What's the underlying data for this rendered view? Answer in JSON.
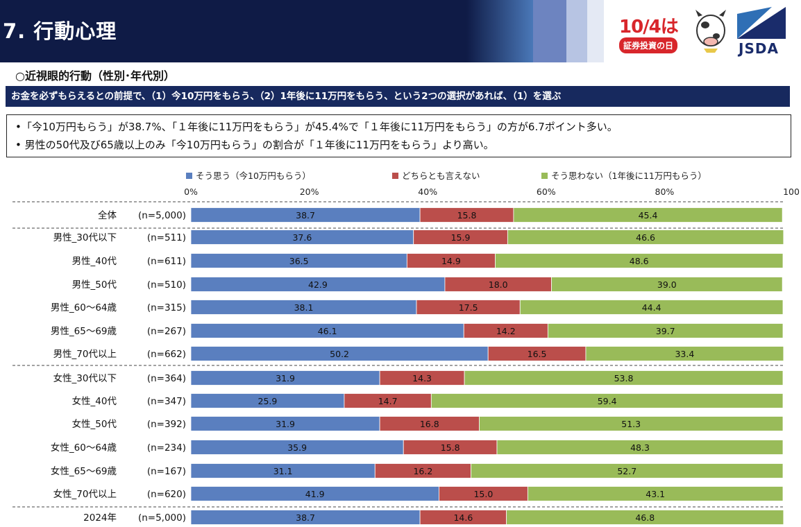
{
  "header": {
    "title": "7. 行動心理"
  },
  "logo": {
    "campaign_date": "10/4は",
    "campaign_sub": "証券投資の日",
    "org": "JSDA"
  },
  "section_title": "○近視眼的行動（性別･年代別）",
  "question": "お金を必ずもらえるとの前提で、（1）今10万円をもらう、（2）1年後に11万円をもらう、という2つの選択があれば、（1）を選ぶ",
  "summary": [
    "•「今10万円もらう」が38.7%、「１年後に11万円をもらう」が45.4%で「１年後に11万円をもらう」の方が6.7ポイント多い。",
    "• 男性の50代及び65歳以上のみ「今10万円もらう」の割合が「１年後に11万円をもらう」より高い。"
  ],
  "colors": {
    "header_bg": "#0f1b46",
    "question_bg": "#17295e",
    "blue": "#5a7fbf",
    "red": "#bb4e4b",
    "green": "#99bb59"
  },
  "chart_data": {
    "type": "bar",
    "orientation": "horizontal",
    "stacked": true,
    "xlim": [
      0,
      100
    ],
    "x_ticks": [
      "0%",
      "20%",
      "40%",
      "60%",
      "80%",
      "100"
    ],
    "legend_position": "top",
    "series": [
      {
        "name": "そう思う（今10万円もらう）",
        "color": "#5a7fbf",
        "values": [
          38.7,
          37.6,
          36.5,
          42.9,
          38.1,
          46.1,
          50.2,
          31.9,
          25.9,
          31.9,
          35.9,
          31.1,
          41.9,
          38.7
        ]
      },
      {
        "name": "どちらとも言えない",
        "color": "#bb4e4b",
        "values": [
          15.8,
          15.9,
          14.9,
          18.0,
          17.5,
          14.2,
          16.5,
          14.3,
          14.7,
          16.8,
          15.8,
          16.2,
          15.0,
          14.6
        ]
      },
      {
        "name": "そう思わない（1年後に11万円もらう）",
        "color": "#99bb59",
        "values": [
          45.4,
          46.6,
          48.6,
          39.0,
          44.4,
          39.7,
          33.4,
          53.8,
          59.4,
          51.3,
          48.3,
          52.7,
          43.1,
          46.8
        ]
      }
    ],
    "categories": [
      "全体",
      "男性_30代以下",
      "男性_40代",
      "男性_50代",
      "男性_60～64歳",
      "男性_65～69歳",
      "男性_70代以上",
      "女性_30代以下",
      "女性_40代",
      "女性_50代",
      "女性_60～64歳",
      "女性_65～69歳",
      "女性_70代以上",
      "2024年"
    ],
    "n_labels": [
      "(n=5,000)",
      "(n=511)",
      "(n=611)",
      "(n=510)",
      "(n=315)",
      "(n=267)",
      "(n=662)",
      "(n=364)",
      "(n=347)",
      "(n=392)",
      "(n=234)",
      "(n=167)",
      "(n=620)",
      "(n=5,000)"
    ]
  }
}
